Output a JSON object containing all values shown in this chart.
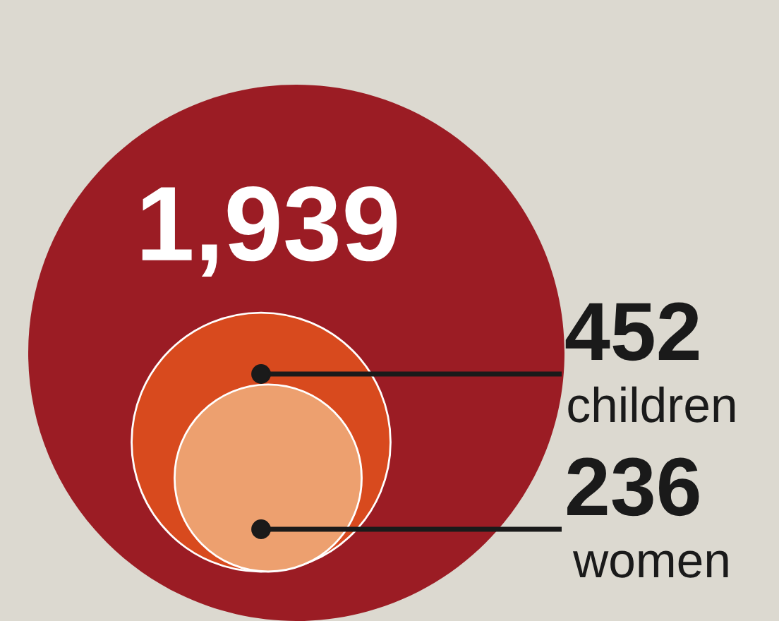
{
  "chart_data": {
    "type": "other",
    "categories": [
      null,
      "children",
      "women"
    ],
    "values": [
      1939,
      452,
      236
    ],
    "value_labels": [
      "1,939",
      "452",
      "236"
    ],
    "colors": [
      "#9b1c24",
      "#d84a1e",
      "#eda06f"
    ]
  }
}
